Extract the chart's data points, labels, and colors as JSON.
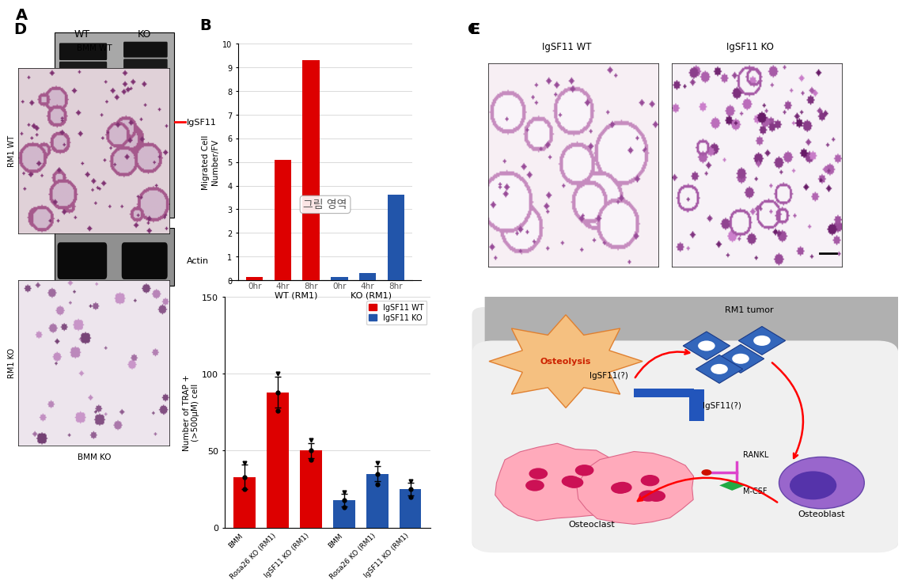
{
  "panel_B": {
    "values": [
      0.15,
      5.1,
      9.3,
      0.15,
      0.3,
      3.6
    ],
    "colors": [
      "#dd0000",
      "#dd0000",
      "#dd0000",
      "#2255aa",
      "#2255aa",
      "#2255aa"
    ],
    "ylabel": "Migrated Cell\nNumber/FV",
    "ylim": [
      0,
      10
    ],
    "yticks": [
      0,
      1,
      2,
      3,
      4,
      5,
      6,
      7,
      8,
      9,
      10
    ],
    "xlabel_ticks": [
      "0hr",
      "4hr",
      "8hr",
      "0hr",
      "4hr",
      "8hr"
    ],
    "watermark": "그림 영역"
  },
  "panel_D_bar": {
    "categories": [
      "BMM",
      "Rosa26 KO (RM1)",
      "IgSF11 KO (RM1)",
      "BMM",
      "Rosa26 KO (RM1)",
      "IgSF11 KO (RM1)"
    ],
    "values": [
      33,
      88,
      50,
      18,
      35,
      25
    ],
    "errors": [
      8,
      10,
      5,
      4,
      5,
      4
    ],
    "colors": [
      "#dd0000",
      "#dd0000",
      "#dd0000",
      "#2255aa",
      "#2255aa",
      "#2255aa"
    ],
    "ylabel": "Number of TRAP +\n(>500μM) cell",
    "ylim": [
      0,
      150
    ],
    "yticks": [
      0,
      50,
      100,
      150
    ],
    "legend_wt": "IgSF11 WT",
    "legend_ko": "IgSF11 KO"
  },
  "bg_color": "#ffffff",
  "label_fontsize": 14,
  "label_fontweight": "bold"
}
